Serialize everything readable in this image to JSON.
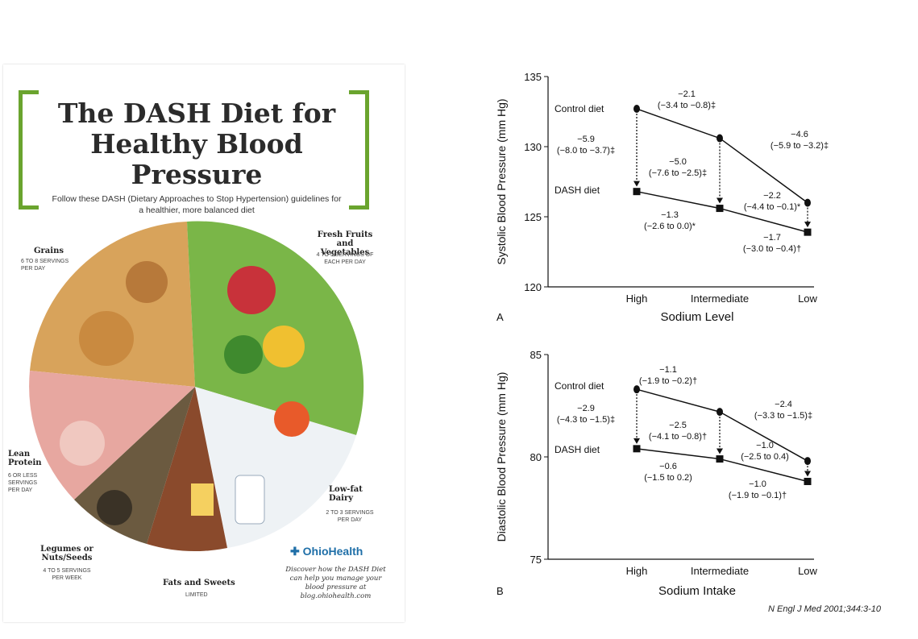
{
  "poster": {
    "title": "The DASH Diet for Healthy Blood Pressure",
    "subtitle": "Follow these DASH (Dietary Approaches to Stop Hypertension) guidelines for a healthier, more balanced diet",
    "groups": {
      "grains": {
        "name": "Grains",
        "servings": "6 TO 8 SERVINGS PER DAY"
      },
      "fruits": {
        "name": "Fresh Fruits and Vegetables",
        "servings": "4 TO 5 SERVINGS OF EACH PER DAY"
      },
      "protein": {
        "name": "Lean Protein",
        "servings": "6 OR LESS SERVINGS PER DAY"
      },
      "dairy": {
        "name": "Low-fat Dairy",
        "servings": "2 TO 3 SERVINGS PER DAY"
      },
      "legumes": {
        "name": "Legumes or Nuts/Seeds",
        "servings": "4 TO 5 SERVINGS PER WEEK"
      },
      "sweets": {
        "name": "Fats and Sweets",
        "servings": "LIMITED"
      }
    },
    "brand": "OhioHealth",
    "note": "Discover how the DASH Diet can help you manage your blood pressure at blog.ohiohealth.com"
  },
  "reference": "N Engl J Med 2001;344:3-10",
  "colors": {
    "green": "#6aa42e",
    "ink": "#111111",
    "brand": "#1f6fa8"
  },
  "chart_data": [
    {
      "type": "line",
      "panel_letter": "A",
      "xlabel": "Sodium Level",
      "ylabel": "Systolic Blood Pressure (mm Hg)",
      "categories": [
        "High",
        "Intermediate",
        "Low"
      ],
      "ylim": [
        120,
        135
      ],
      "yticks": [
        120,
        125,
        130,
        135
      ],
      "series": [
        {
          "name": "Control diet",
          "marker": "circle",
          "values": [
            132.7,
            130.6,
            126.0
          ]
        },
        {
          "name": "DASH diet",
          "marker": "square",
          "values": [
            126.8,
            125.6,
            123.9
          ]
        }
      ],
      "annotations": [
        {
          "l1": "−2.1",
          "l2": "(−3.4 to −0.8)‡"
        },
        {
          "l1": "−4.6",
          "l2": "(−5.9 to −3.2)‡"
        },
        {
          "l1": "−5.9",
          "l2": "(−8.0 to −3.7)‡"
        },
        {
          "l1": "−5.0",
          "l2": "(−7.6 to −2.5)‡"
        },
        {
          "l1": "−2.2",
          "l2": "(−4.4 to −0.1)*"
        },
        {
          "l1": "−1.3",
          "l2": "(−2.6 to 0.0)*"
        },
        {
          "l1": "−1.7",
          "l2": "(−3.0 to −0.4)†"
        }
      ]
    },
    {
      "type": "line",
      "panel_letter": "B",
      "xlabel": "Sodium Intake",
      "ylabel": "Diastolic Blood Pressure (mm Hg)",
      "categories": [
        "High",
        "Intermediate",
        "Low"
      ],
      "ylim": [
        75,
        85
      ],
      "yticks": [
        75,
        80,
        85
      ],
      "series": [
        {
          "name": "Control diet",
          "marker": "circle",
          "values": [
            83.3,
            82.2,
            79.8
          ]
        },
        {
          "name": "DASH diet",
          "marker": "square",
          "values": [
            80.4,
            79.9,
            78.8
          ]
        }
      ],
      "annotations": [
        {
          "l1": "−1.1",
          "l2": "(−1.9 to −0.2)†"
        },
        {
          "l1": "−2.4",
          "l2": "(−3.3 to −1.5)‡"
        },
        {
          "l1": "−2.9",
          "l2": "(−4.3 to −1.5)‡"
        },
        {
          "l1": "−2.5",
          "l2": "(−4.1 to −0.8)†"
        },
        {
          "l1": "−1.0",
          "l2": "(−2.5 to 0.4)"
        },
        {
          "l1": "−0.6",
          "l2": "(−1.5 to 0.2)"
        },
        {
          "l1": "−1.0",
          "l2": "(−1.9 to −0.1)†"
        }
      ]
    }
  ]
}
